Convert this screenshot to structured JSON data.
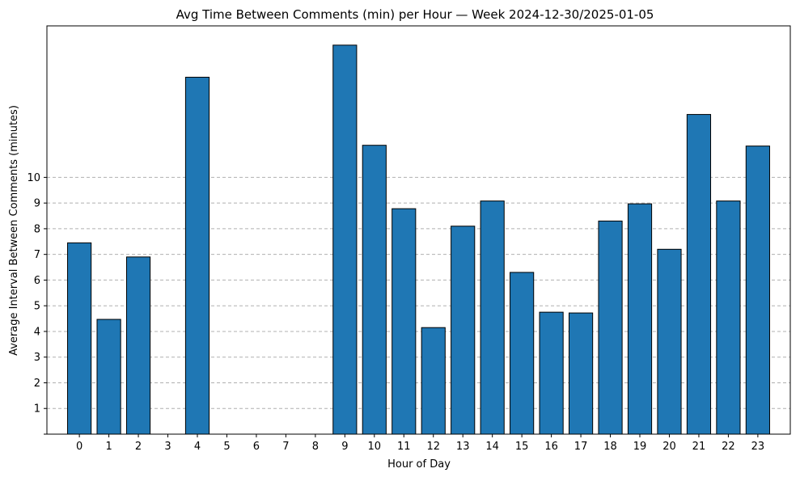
{
  "chart_data": {
    "type": "bar",
    "title": "Avg Time Between Comments (min) per Hour — Week 2024-12-30/2025-01-05",
    "xlabel": "Hour of Day",
    "ylabel": "Average Interval Between Comments (minutes)",
    "categories": [
      "0",
      "1",
      "2",
      "3",
      "4",
      "5",
      "6",
      "7",
      "8",
      "9",
      "10",
      "11",
      "12",
      "13",
      "14",
      "15",
      "16",
      "17",
      "18",
      "19",
      "20",
      "21",
      "22",
      "23"
    ],
    "values": [
      7.45,
      4.47,
      6.9,
      0,
      13.9,
      0,
      0,
      0,
      0,
      15.15,
      11.25,
      8.78,
      4.15,
      8.1,
      9.08,
      6.3,
      4.75,
      4.72,
      8.3,
      8.97,
      7.2,
      12.45,
      9.08,
      11.22
    ],
    "ylim": [
      0,
      15.9
    ],
    "yticks": [
      1,
      2,
      3,
      4,
      5,
      6,
      7,
      8,
      9,
      10
    ],
    "grid": "y-dashed",
    "bar_color": "#1f77b4",
    "edge_color": "#000000",
    "grid_color": "#b0b0b0"
  }
}
